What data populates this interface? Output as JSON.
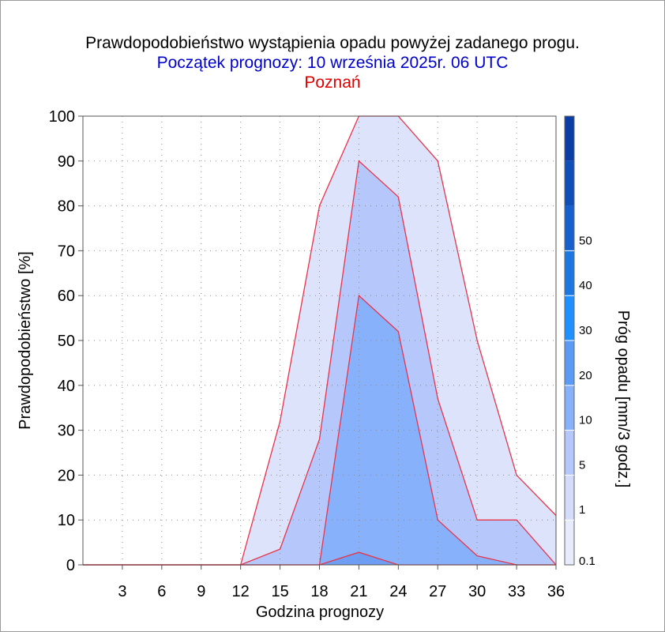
{
  "title": "Prawdopodobieństwo wystąpienia opadu powyżej zadanego progu.",
  "subtitle": "Początek prognozy: 10 września 2025r. 06 UTC",
  "location": "Poznań",
  "chart_data": {
    "type": "area",
    "xlabel": "Godzina prognozy",
    "ylabel": "Prawdopodobieństwo [%]",
    "xlim": [
      0,
      36
    ],
    "ylim": [
      0,
      100
    ],
    "x": [
      0,
      3,
      6,
      9,
      12,
      15,
      18,
      21,
      24,
      27,
      30,
      33,
      36
    ],
    "x_ticks": [
      "3",
      "6",
      "9",
      "12",
      "15",
      "18",
      "21",
      "24",
      "27",
      "30",
      "33",
      "36"
    ],
    "y_ticks": [
      "0",
      "10",
      "20",
      "30",
      "40",
      "50",
      "60",
      "70",
      "80",
      "90",
      "100"
    ],
    "grid": true,
    "series": [
      {
        "threshold": 0.1,
        "color": "#dde3fa",
        "values": [
          0,
          0,
          0,
          0,
          0,
          32,
          80,
          100,
          100,
          90,
          50,
          20,
          11
        ]
      },
      {
        "threshold": 1,
        "color": "#b6c8fb",
        "values": [
          0,
          0,
          0,
          0,
          0,
          3.5,
          28,
          90,
          82,
          37,
          10,
          10,
          0
        ]
      },
      {
        "threshold": 5,
        "color": "#88b1fb",
        "values": [
          0,
          0,
          0,
          0,
          0,
          0,
          0,
          60,
          52,
          10,
          2,
          0,
          0
        ]
      },
      {
        "threshold": 10,
        "color": "#6d9ef4",
        "values": [
          0,
          0,
          0,
          0,
          0,
          0,
          0,
          2.8,
          0,
          0,
          0,
          0,
          0
        ]
      }
    ],
    "colorbar": {
      "label": "Próg opadu [mm/3 godz.]",
      "ticks": [
        "0.1",
        "1",
        "5",
        "10",
        "20",
        "30",
        "40",
        "50"
      ],
      "colors": [
        "#e7ebfc",
        "#d3dcfb",
        "#b6c8fb",
        "#88b1fb",
        "#5b9af5",
        "#1e90ff",
        "#1a78e0",
        "#1560cc",
        "#0f4fb8",
        "#0a3ea5"
      ],
      "line_color": "#e8334a"
    }
  }
}
